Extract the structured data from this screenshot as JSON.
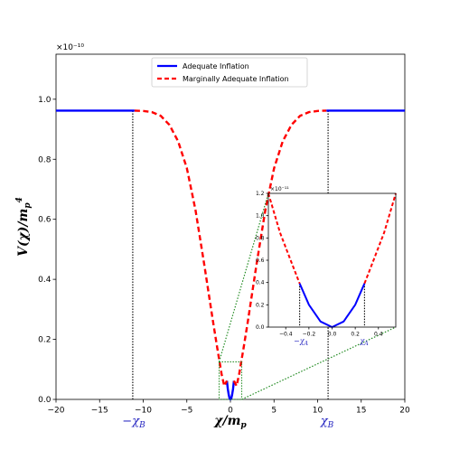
{
  "chart_data": [
    {
      "type": "line",
      "exponent_label": "×10⁻¹⁰",
      "xlabel": "χ/m_p",
      "ylabel": "V(χ)/m_p⁴",
      "xlim": [
        -20,
        20
      ],
      "ylim": [
        0,
        1.15
      ],
      "xticks": [
        "−20",
        "−15",
        "−10",
        "−5",
        "0",
        "5",
        "10",
        "15",
        "20"
      ],
      "yticks": [
        "0.0",
        "0.2",
        "0.4",
        "0.6",
        "0.8",
        "1.0"
      ],
      "legend_position": "top-center",
      "series": [
        {
          "name": "Adequate Inflation",
          "color": "#0000ff",
          "style": "solid",
          "segments": [
            {
              "x": [
                -20,
                -11
              ],
              "y": [
                0.962,
                0.962
              ]
            },
            {
              "x": [
                -0.4,
                -0.3,
                -0.2,
                -0.1,
                0,
                0.1,
                0.2,
                0.3,
                0.4
              ],
              "y": [
                0.062,
                0.035,
                0.016,
                0.004,
                0,
                0.004,
                0.016,
                0.035,
                0.062
              ]
            },
            {
              "x": [
                11,
                20
              ],
              "y": [
                0.962,
                0.962
              ]
            }
          ]
        },
        {
          "name": "Marginally Adequate Inflation",
          "color": "#ff0000",
          "style": "dashed",
          "segments": [
            {
              "x": [
                -11,
                -10,
                -9,
                -8,
                -7,
                -6,
                -5,
                -4,
                -3,
                -2,
                -1.5,
                -1,
                -0.7,
                -0.4
              ],
              "y": [
                0.962,
                0.961,
                0.957,
                0.945,
                0.915,
                0.86,
                0.77,
                0.63,
                0.45,
                0.26,
                0.17,
                0.083,
                0.045,
                0.062
              ]
            },
            {
              "x": [
                0.4,
                0.7,
                1,
                1.5,
                2,
                3,
                4,
                5,
                6,
                7,
                8,
                9,
                10,
                11
              ],
              "y": [
                0.062,
                0.045,
                0.083,
                0.17,
                0.26,
                0.45,
                0.63,
                0.77,
                0.86,
                0.915,
                0.945,
                0.957,
                0.961,
                0.962
              ]
            }
          ]
        }
      ],
      "vlines_x": [
        -11.2,
        11.2
      ],
      "annotations": [
        "−χ_B",
        "χ_B"
      ],
      "zoom_box": {
        "x": [
          -1.3,
          1.3
        ],
        "y": [
          0,
          0.125
        ]
      }
    },
    {
      "type": "line",
      "exponent_label": "×10⁻¹¹",
      "xlim": [
        -0.55,
        0.55
      ],
      "ylim": [
        0,
        1.2
      ],
      "xticks": [
        "−0.4",
        "−0.2",
        "0.0",
        "0.2",
        "0.4"
      ],
      "yticks": [
        "0.0",
        "0.2",
        "0.4",
        "0.6",
        "0.8",
        "1.0",
        "1.2"
      ],
      "series": [
        {
          "name": "Adequate Inflation",
          "color": "#0000ff",
          "style": "solid",
          "segments": [
            {
              "x": [
                -0.28,
                -0.2,
                -0.1,
                0,
                0.1,
                0.2,
                0.28
              ],
              "y": [
                0.392,
                0.2,
                0.05,
                0,
                0.05,
                0.2,
                0.392
              ]
            }
          ]
        },
        {
          "name": "Marginally Adequate Inflation",
          "color": "#ff0000",
          "style": "dashed",
          "segments": [
            {
              "x": [
                -0.55,
                -0.45,
                -0.35,
                -0.28
              ],
              "y": [
                1.2,
                0.85,
                0.58,
                0.392
              ]
            },
            {
              "x": [
                0.28,
                0.35,
                0.45,
                0.55
              ],
              "y": [
                0.392,
                0.58,
                0.85,
                1.2
              ]
            }
          ]
        }
      ],
      "vlines_x": [
        -0.28,
        0.28
      ],
      "annotations": [
        "−χ_A",
        "χ_A"
      ]
    }
  ]
}
